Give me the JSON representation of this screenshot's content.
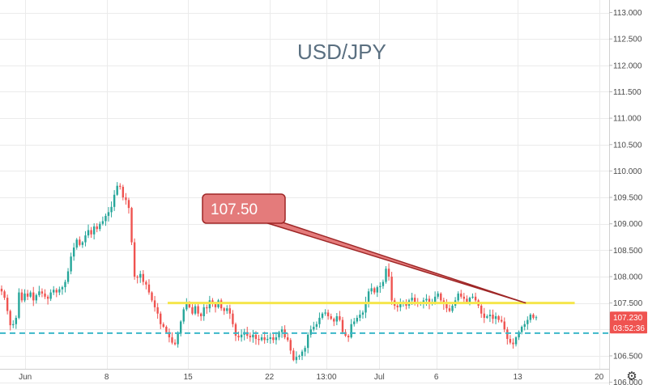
{
  "chart_data": {
    "type": "candlestick",
    "title": "USD/JPY",
    "colors": {
      "up": "#26a69a",
      "down": "#ef5350",
      "grid": "#ebebeb",
      "support_line": "#f5e64b",
      "dashed_line": "#3bb8c9",
      "callout_fill": "#e47b7b",
      "callout_border": "#9e2626",
      "price_tag": "#ef5350"
    },
    "ylim": [
      105.9,
      113.2
    ],
    "xlim": [
      0,
      73
    ],
    "y_ticks": [
      "113.000",
      "112.500",
      "112.000",
      "111.500",
      "111.000",
      "110.500",
      "110.000",
      "109.500",
      "109.000",
      "108.500",
      "108.000",
      "107.500",
      "107.000",
      "106.500",
      "106.000"
    ],
    "x_ticks": [
      {
        "label": "Jun",
        "x": 3
      },
      {
        "label": "8",
        "x": 13
      },
      {
        "label": "15",
        "x": 23
      },
      {
        "label": "22",
        "x": 33
      },
      {
        "label": "13:00",
        "x": 40
      },
      {
        "label": "Jul",
        "x": 46.5
      },
      {
        "label": "6",
        "x": 53.5
      },
      {
        "label": "13",
        "x": 63.5
      },
      {
        "label": "20",
        "x": 73.5
      }
    ],
    "closes": [
      107.72,
      107.6,
      107.35,
      107.08,
      107.1,
      107.22,
      107.7,
      107.55,
      107.68,
      107.62,
      107.7,
      107.55,
      107.65,
      107.72,
      107.68,
      107.62,
      107.58,
      107.7,
      107.75,
      107.7,
      107.76,
      107.8,
      107.9,
      108.1,
      108.38,
      108.55,
      108.7,
      108.6,
      108.65,
      108.78,
      108.88,
      108.8,
      108.95,
      108.9,
      109.0,
      109.05,
      109.15,
      109.22,
      109.32,
      109.55,
      109.72,
      109.7,
      109.5,
      109.45,
      109.3,
      108.65,
      108.0,
      107.98,
      108.05,
      107.9,
      107.85,
      107.7,
      107.55,
      107.42,
      107.3,
      107.1,
      107.05,
      106.95,
      106.85,
      106.75,
      106.72,
      106.92,
      107.15,
      107.38,
      107.5,
      107.42,
      107.3,
      107.44,
      107.3,
      107.25,
      107.42,
      107.4,
      107.55,
      107.48,
      107.42,
      107.55,
      107.4,
      107.35,
      107.4,
      107.3,
      107.1,
      106.88,
      106.85,
      106.9,
      106.95,
      106.88,
      106.85,
      106.9,
      106.82,
      106.8,
      106.85,
      106.8,
      106.82,
      106.85,
      106.8,
      106.85,
      106.95,
      107.0,
      106.85,
      106.8,
      106.6,
      106.42,
      106.48,
      106.5,
      106.58,
      106.65,
      106.9,
      107.0,
      107.05,
      107.1,
      107.22,
      107.3,
      107.32,
      107.25,
      107.2,
      107.15,
      107.25,
      107.18,
      106.95,
      106.88,
      106.85,
      107.1,
      107.15,
      107.22,
      107.28,
      107.32,
      107.52,
      107.72,
      107.78,
      107.7,
      107.8,
      107.82,
      107.9,
      108.15,
      108.0,
      107.55,
      107.45,
      107.42,
      107.48,
      107.5,
      107.45,
      107.55,
      107.6,
      107.52,
      107.48,
      107.5,
      107.55,
      107.58,
      107.48,
      107.52,
      107.62,
      107.68,
      107.55,
      107.48,
      107.4,
      107.35,
      107.45,
      107.55,
      107.68,
      107.62,
      107.58,
      107.52,
      107.6,
      107.62,
      107.55,
      107.45,
      107.3,
      107.22,
      107.25,
      107.28,
      107.2,
      107.25,
      107.18,
      107.15,
      107.0,
      106.82,
      106.75,
      106.72,
      106.85,
      106.95,
      107.05,
      107.1,
      107.18,
      107.28,
      107.22,
      107.23
    ],
    "support_line": {
      "value": 107.5,
      "x_start": 20.5,
      "x_end": 70.5
    },
    "dashed_line": {
      "value": 106.93
    },
    "callout": {
      "text": "107.50",
      "tip_x": 64.5,
      "tip_value": 107.5
    },
    "price_tag": {
      "price": "107.230",
      "countdown": "03:52:36",
      "value": 107.23
    },
    "settings_icon": "gear-icon",
    "settings_glyph": "⚙"
  }
}
